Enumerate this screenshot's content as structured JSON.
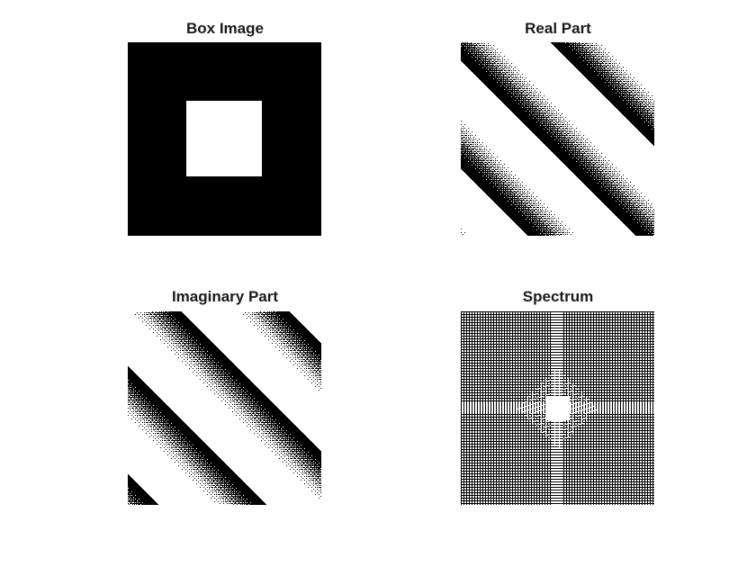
{
  "figure": {
    "panels": [
      {
        "key": "box",
        "title": "Box Image",
        "content": "white square centered on black background"
      },
      {
        "key": "real",
        "title": "Real Part",
        "content": "dithered diagonal striped pattern"
      },
      {
        "key": "imag",
        "title": "Imaginary Part",
        "content": "dithered diagonal striped pattern"
      },
      {
        "key": "spectrum",
        "title": "Spectrum",
        "content": "dense horizontal and vertical line grid with bright center cross"
      }
    ]
  }
}
